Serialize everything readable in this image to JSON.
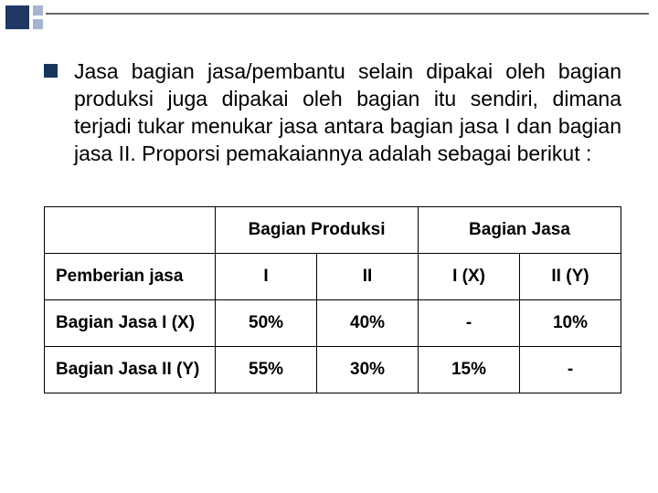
{
  "paragraph": "Jasa bagian jasa/pembantu selain dipakai oleh bagian produksi juga dipakai oleh bagian itu sendiri, dimana terjadi tukar menukar jasa antara bagian jasa I dan bagian jasa II. Proporsi pemakaiannya adalah sebagai berikut :",
  "table": {
    "group_headers": [
      "Bagian Produksi",
      "Bagian Jasa"
    ],
    "row_header_title": "Pemberian jasa",
    "col_headers": [
      "I",
      "II",
      "I (X)",
      "II (Y)"
    ],
    "rows": [
      {
        "label": "Bagian Jasa I (X)",
        "cells": [
          "50%",
          "40%",
          "-",
          "10%"
        ]
      },
      {
        "label": "Bagian Jasa II (Y)",
        "cells": [
          "55%",
          "30%",
          "15%",
          "-"
        ]
      }
    ]
  },
  "colors": {
    "bullet": "#17365d",
    "deco_dark": "#203864",
    "deco_light": "#a6b4d0",
    "border": "#000000",
    "text": "#000000",
    "background": "#ffffff"
  }
}
